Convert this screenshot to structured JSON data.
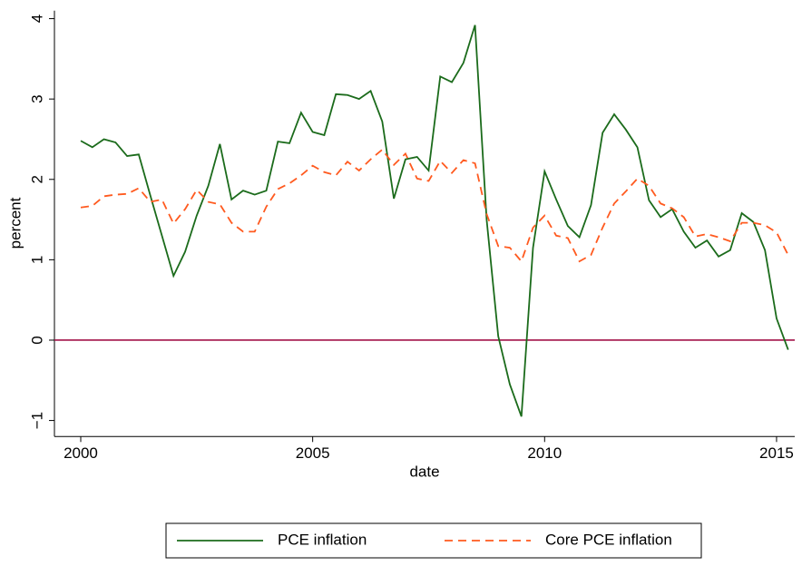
{
  "chart_data": {
    "type": "line",
    "xlabel": "date",
    "ylabel": "percent",
    "x": [
      2000,
      2000.25,
      2000.5,
      2000.75,
      2001,
      2001.25,
      2001.5,
      2001.75,
      2002,
      2002.25,
      2002.5,
      2002.75,
      2003,
      2003.25,
      2003.5,
      2003.75,
      2004,
      2004.25,
      2004.5,
      2004.75,
      2005,
      2005.25,
      2005.5,
      2005.75,
      2006,
      2006.25,
      2006.5,
      2006.75,
      2007,
      2007.25,
      2007.5,
      2007.75,
      2008,
      2008.25,
      2008.5,
      2008.75,
      2009,
      2009.25,
      2009.5,
      2009.75,
      2010,
      2010.25,
      2010.5,
      2010.75,
      2011,
      2011.25,
      2011.5,
      2011.75,
      2012,
      2012.25,
      2012.5,
      2012.75,
      2013,
      2013.25,
      2013.5,
      2013.75,
      2014,
      2014.25,
      2014.5,
      2014.75,
      2015,
      2015.25
    ],
    "series": [
      {
        "name": "PCE inflation",
        "color": "#1b6b1b",
        "style": "solid",
        "values": [
          2.48,
          2.4,
          2.5,
          2.46,
          2.29,
          2.31,
          1.8,
          1.3,
          0.8,
          1.1,
          1.55,
          1.92,
          2.44,
          1.75,
          1.86,
          1.81,
          1.86,
          2.47,
          2.45,
          2.83,
          2.59,
          2.55,
          3.06,
          3.05,
          3.0,
          3.1,
          2.72,
          1.76,
          2.25,
          2.28,
          2.11,
          3.28,
          3.21,
          3.45,
          3.92,
          1.5,
          0.05,
          -0.55,
          -0.95,
          1.15,
          2.1,
          1.75,
          1.42,
          1.28,
          1.68,
          2.58,
          2.81,
          2.62,
          2.4,
          1.74,
          1.53,
          1.63,
          1.35,
          1.15,
          1.24,
          1.04,
          1.12,
          1.58,
          1.47,
          1.12,
          0.27,
          -0.12
        ]
      },
      {
        "name": "Core PCE inflation",
        "color": "#ff5a1f",
        "style": "dashed",
        "values": [
          1.65,
          1.67,
          1.79,
          1.81,
          1.82,
          1.89,
          1.72,
          1.75,
          1.45,
          1.63,
          1.87,
          1.72,
          1.69,
          1.46,
          1.35,
          1.35,
          1.66,
          1.88,
          1.95,
          2.05,
          2.17,
          2.09,
          2.05,
          2.22,
          2.11,
          2.25,
          2.37,
          2.18,
          2.32,
          2.01,
          1.98,
          2.23,
          2.08,
          2.24,
          2.2,
          1.57,
          1.17,
          1.15,
          0.98,
          1.4,
          1.55,
          1.3,
          1.27,
          0.98,
          1.06,
          1.4,
          1.7,
          1.85,
          2.01,
          1.92,
          1.7,
          1.64,
          1.53,
          1.29,
          1.32,
          1.28,
          1.23,
          1.46,
          1.46,
          1.43,
          1.34,
          1.06
        ]
      }
    ],
    "hline": {
      "value": 0,
      "color": "#a3134a"
    },
    "xlim": [
      1999.433,
      2015.392
    ],
    "xticks": [
      2000,
      2005,
      2010,
      2015
    ],
    "ylim": [
      -1.2,
      4.1
    ],
    "yticks": [
      {
        "value": -1,
        "label": "−1"
      },
      0,
      1,
      2,
      3,
      4
    ],
    "legend": "bottom"
  }
}
